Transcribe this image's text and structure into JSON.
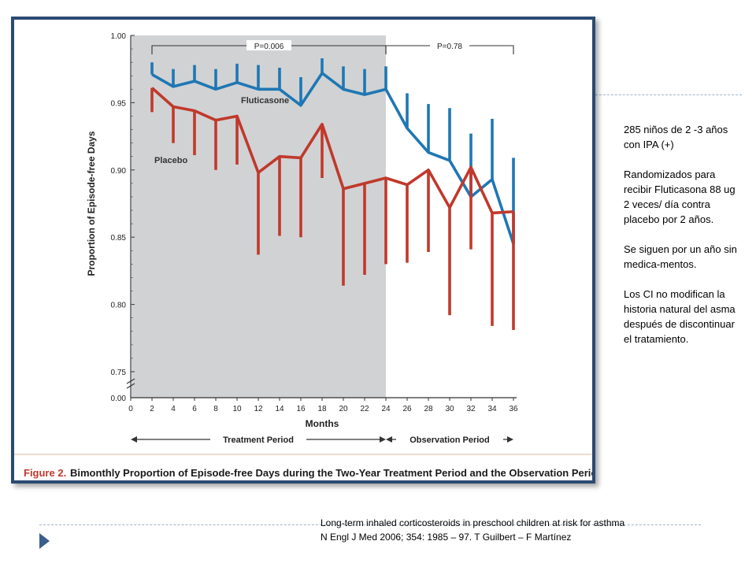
{
  "slide": {
    "notes": [
      "285 niños de 2 -3 años con IPA (+)",
      "Randomizados para recibir Fluticasona 88 ug 2 veces/ día contra placebo por 2 años.",
      "Se siguen por un año sin medica-mentos.",
      "Los CI no modifican la historia natural del asma después de discontinuar el tratamiento."
    ],
    "citation_line1": "Long-term  inhaled  corticosteroids in preschool children at risk for asthma",
    "citation_line2": "N Engl J Med  2006; 354: 1985 – 97.  T Guilbert – F Martínez",
    "bullet_icon": "triangle-bullet-icon"
  },
  "chart_data": {
    "type": "line",
    "caption_label": "Figure 2.",
    "caption_text": "Bimonthly Proportion of Episode-free Days during the Two-Year Treatment Period and the Observation Period.",
    "xlabel": "Months",
    "ylabel": "Proportion of Episode-free Days",
    "x_ticks": [
      "0",
      "2",
      "4",
      "6",
      "8",
      "10",
      "12",
      "14",
      "16",
      "18",
      "20",
      "22",
      "24",
      "26",
      "28",
      "30",
      "32",
      "34",
      "36"
    ],
    "y_ticks": [
      "0.00",
      "0.75",
      "0.80",
      "0.85",
      "0.90",
      "0.95",
      "1.00"
    ],
    "ylim": [
      0.75,
      1.0
    ],
    "y_axis_break": true,
    "treatment_period_label": "Treatment Period",
    "observation_period_label": "Observation Period",
    "treatment_shaded_range": [
      0,
      24
    ],
    "p_values": [
      {
        "label": "P=0.006",
        "from": 2,
        "to": 24
      },
      {
        "label": "P=0.78",
        "from": 24,
        "to": 36
      }
    ],
    "x": [
      2,
      4,
      6,
      8,
      10,
      12,
      14,
      16,
      18,
      20,
      22,
      24,
      26,
      28,
      30,
      32,
      34,
      36
    ],
    "series": [
      {
        "name": "Fluticasone",
        "color": "#1f77b4",
        "error_direction": "up",
        "values": [
          0.971,
          0.962,
          0.966,
          0.96,
          0.965,
          0.96,
          0.96,
          0.948,
          0.972,
          0.96,
          0.956,
          0.96,
          0.931,
          0.913,
          0.907,
          0.88,
          0.893,
          0.845
        ],
        "error_ends": [
          0.98,
          0.975,
          0.978,
          0.975,
          0.979,
          0.978,
          0.976,
          0.969,
          0.983,
          0.977,
          0.975,
          0.977,
          0.957,
          0.949,
          0.946,
          0.927,
          0.938,
          0.909
        ]
      },
      {
        "name": "Placebo",
        "color": "#c0392b",
        "error_direction": "down",
        "values": [
          0.961,
          0.947,
          0.944,
          0.937,
          0.94,
          0.898,
          0.91,
          0.909,
          0.934,
          0.886,
          0.89,
          0.894,
          0.889,
          0.9,
          0.872,
          0.902,
          0.868,
          0.869
        ],
        "error_ends": [
          0.943,
          0.92,
          0.911,
          0.9,
          0.904,
          0.837,
          0.851,
          0.85,
          0.894,
          0.814,
          0.822,
          0.83,
          0.831,
          0.839,
          0.792,
          0.841,
          0.784,
          0.781
        ]
      }
    ]
  }
}
